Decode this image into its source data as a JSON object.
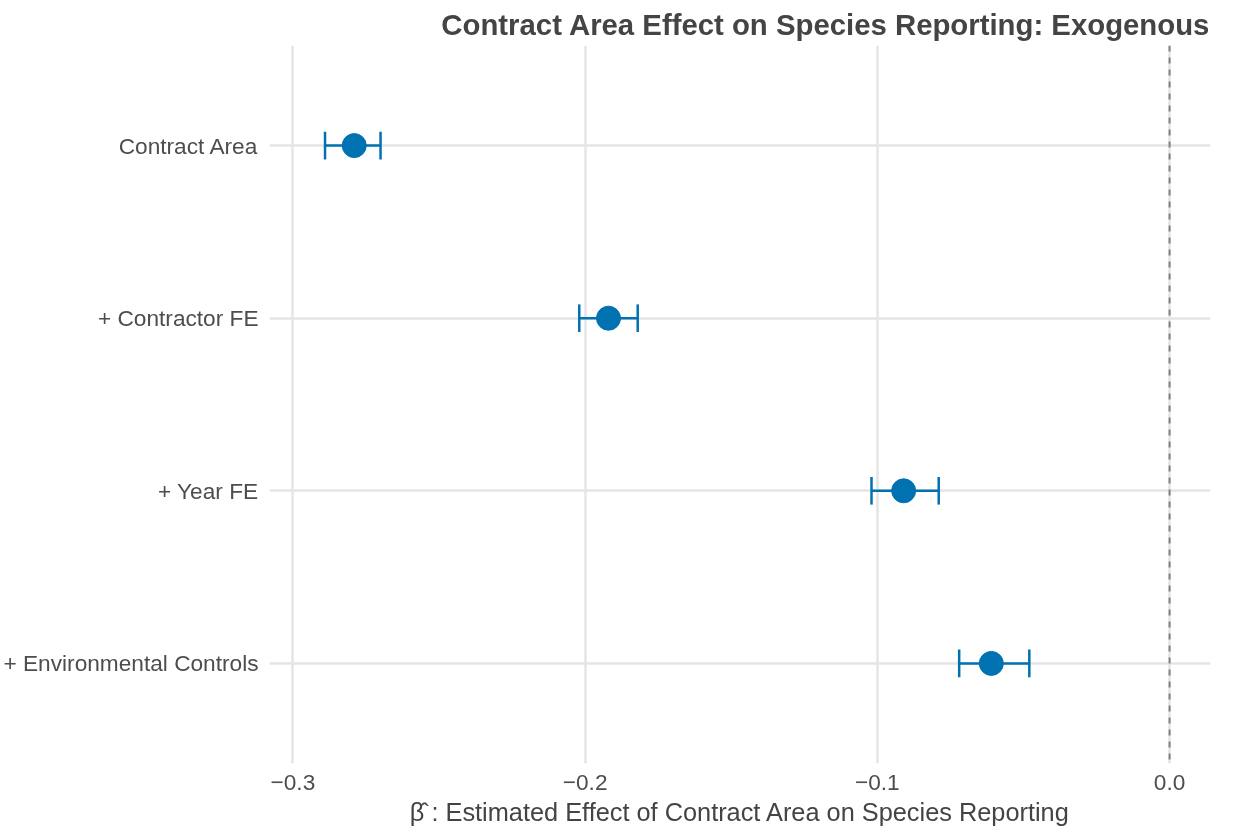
{
  "chart_data": {
    "type": "scatter",
    "orientation": "horizontal",
    "title": "Contract Area Effect on Species Reporting: Exogenous",
    "xlabel": "β̂ : Estimated Effect of Contract Area on Species Reporting",
    "categories": [
      "Contract Area",
      "+ Contractor FE",
      "+ Year FE",
      "+ Environmental Controls"
    ],
    "series": [
      {
        "color": "#0072b2",
        "values": [
          -0.279,
          -0.192,
          -0.091,
          -0.061
        ],
        "errors": [
          [
            -0.289,
            -0.27
          ],
          [
            -0.202,
            -0.182
          ],
          [
            -0.102,
            -0.079
          ],
          [
            -0.072,
            -0.048
          ]
        ]
      }
    ],
    "xlim": [
      -0.308,
      0.014
    ],
    "xticks": [
      {
        "value": -0.3,
        "label": "−0.3"
      },
      {
        "value": -0.2,
        "label": "−0.2"
      },
      {
        "value": -0.1,
        "label": "−0.1"
      },
      {
        "value": 0.0,
        "label": "0.0"
      }
    ],
    "ref_lines": [
      {
        "axis": "x",
        "value": 0.0,
        "color": "#808080",
        "line_style": "dashed"
      }
    ],
    "grid": true,
    "marker": "circle"
  }
}
